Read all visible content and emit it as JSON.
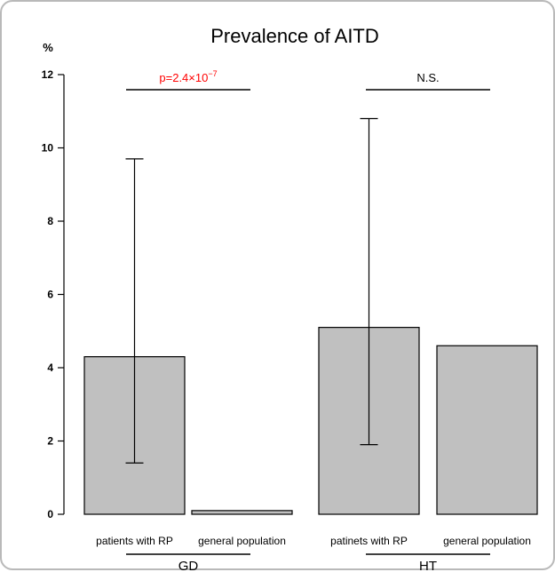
{
  "chart_data": {
    "type": "bar",
    "title": "Prevalence of AITD",
    "ylabel": "%",
    "ylim": [
      0,
      12
    ],
    "yticks": [
      0,
      2,
      4,
      6,
      8,
      10,
      12
    ],
    "grid": false,
    "legend": "none",
    "categories": [
      "patients with RP",
      "general population",
      "patinets with RP",
      "general population"
    ],
    "values": [
      4.3,
      0.1,
      5.1,
      4.6
    ],
    "error_bars": [
      [
        1.4,
        9.7
      ],
      null,
      [
        1.9,
        10.8
      ],
      null
    ],
    "groups": [
      {
        "label": "GD",
        "categories": [
          0,
          1
        ],
        "annotation": {
          "prefix": "p=2.4×10",
          "exponent": "−7",
          "color": "#ff0000"
        }
      },
      {
        "label": "HT",
        "categories": [
          2,
          3
        ],
        "annotation": {
          "prefix": "N.S.",
          "exponent": "",
          "color": "#000000"
        }
      }
    ],
    "bar_color": "#c0c0c0",
    "bar_edge_color": "#000000"
  }
}
